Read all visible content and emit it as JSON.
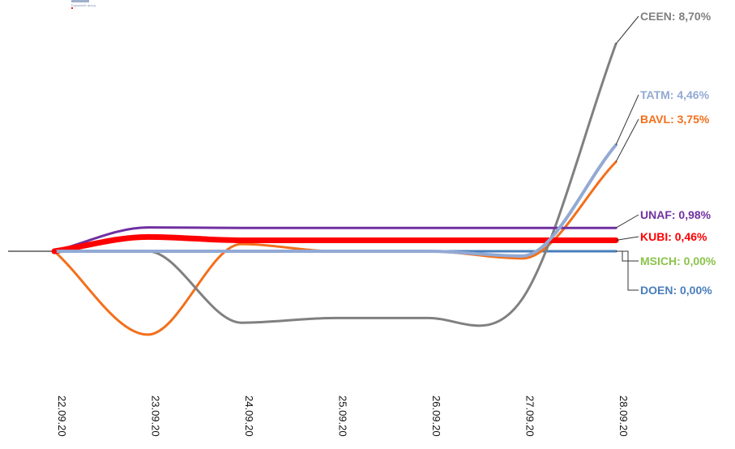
{
  "logo": {
    "caption": "Биржевой фонд"
  },
  "chart_data": {
    "type": "line",
    "x": [
      "22.09.20",
      "23.09.20",
      "24.09.20",
      "25.09.20",
      "26.09.20",
      "27.09.20",
      "28.09.20"
    ],
    "series": [
      {
        "name": "CEEN",
        "label": "CEEN: 8,70%",
        "color": "#808080",
        "width": 3,
        "values": [
          0,
          0,
          -3.0,
          -2.8,
          -2.8,
          -2.0,
          8.7
        ]
      },
      {
        "name": "TATM",
        "label": "TATM: 4,46%",
        "color": "#92a9d4",
        "width": 4,
        "values": [
          0,
          0,
          0,
          0,
          0,
          -0.2,
          4.46
        ]
      },
      {
        "name": "BAVL",
        "label": "BAVL: 3,75%",
        "color": "#f36f1b",
        "width": 3,
        "values": [
          0,
          -3.5,
          0.3,
          0,
          0,
          -0.3,
          3.75
        ]
      },
      {
        "name": "UNAF",
        "label": "UNAF: 0,98%",
        "color": "#7030a0",
        "width": 3,
        "values": [
          0,
          1.0,
          0.98,
          0.98,
          0.98,
          0.98,
          0.98
        ]
      },
      {
        "name": "KUBI",
        "label": "KUBI:  0,46%",
        "color": "#ff0000",
        "width": 7,
        "values": [
          0,
          0.6,
          0.46,
          0.46,
          0.46,
          0.46,
          0.46
        ]
      },
      {
        "name": "MSICH",
        "label": "MSICH: 0,00%",
        "color": "#8bc34a",
        "width": 3,
        "values": [
          0,
          0,
          0,
          0,
          0,
          0,
          0
        ]
      },
      {
        "name": "DOEN",
        "label": "DOEN: 0,00%",
        "color": "#4a7ebb",
        "width": 3,
        "values": [
          0,
          0,
          0,
          0,
          0,
          0,
          0
        ]
      }
    ],
    "ylim": [
      -5,
      10
    ],
    "grid": false,
    "legend": "right-of-line-ends"
  }
}
